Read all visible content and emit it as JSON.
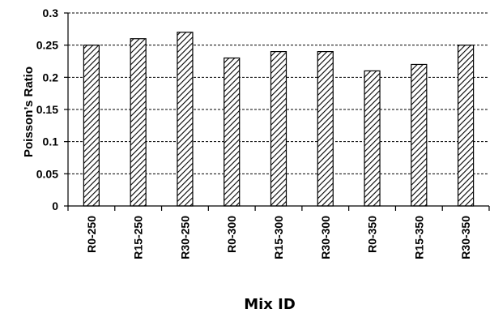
{
  "chart_data": {
    "type": "bar",
    "categories": [
      "R0-250",
      "R15-250",
      "R30-250",
      "R0-300",
      "R15-300",
      "R30-300",
      "R0-350",
      "R15-350",
      "R30-350"
    ],
    "values": [
      0.25,
      0.26,
      0.27,
      0.23,
      0.24,
      0.24,
      0.21,
      0.22,
      0.25
    ],
    "xlabel": "Mix ID",
    "ylabel": "Poisson’s Ratio",
    "ylim": [
      0,
      0.3
    ],
    "yticks": [
      "0",
      "0.05",
      "0.1",
      "0.15",
      "0.2",
      "0.25",
      "0.3"
    ],
    "grid": "horizontal dashed",
    "bar_fill": "diagonal hatch",
    "colors": {
      "bar_stroke": "#000000",
      "hatch": "#000000",
      "grid": "#000000",
      "background": "#ffffff"
    }
  }
}
